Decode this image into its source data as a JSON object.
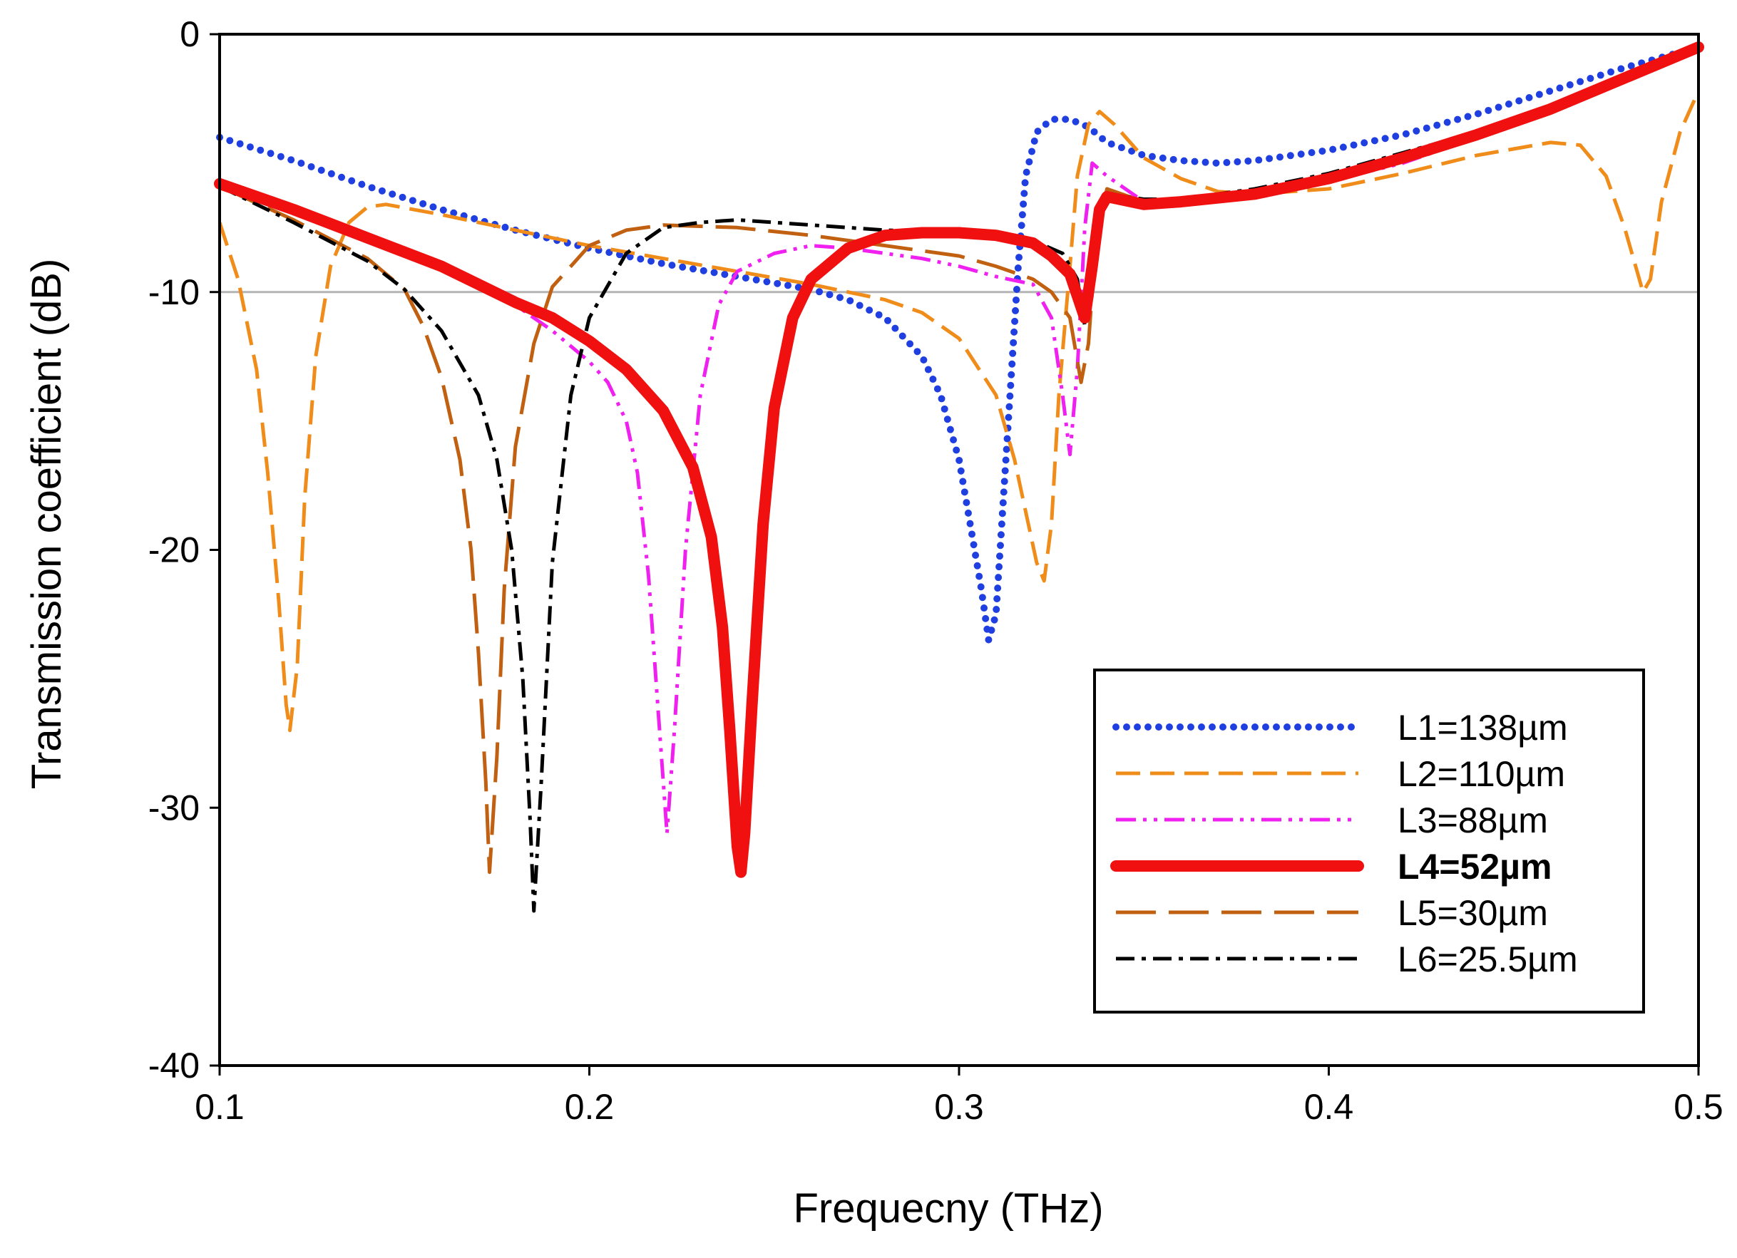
{
  "chart_data": {
    "type": "line",
    "xlabel": "Frequecny (THz)",
    "ylabel": "Transmission coefficient  (dB)",
    "xlim": [
      0.1,
      0.5
    ],
    "ylim": [
      -40,
      0
    ],
    "x_ticks": [
      "0.1",
      "0.2",
      "0.3",
      "0.4",
      "0.5"
    ],
    "y_ticks": [
      "0",
      "-10",
      "-20",
      "-30",
      "-40"
    ],
    "reference_line_y": -10,
    "legend_position": "bottom-right",
    "series": [
      {
        "name": "L1=138µm",
        "color": "#1f3fe0",
        "dash": "dotted",
        "bold": false,
        "points": [
          [
            0.1,
            -4.0
          ],
          [
            0.12,
            -4.9
          ],
          [
            0.14,
            -5.9
          ],
          [
            0.16,
            -6.8
          ],
          [
            0.18,
            -7.6
          ],
          [
            0.2,
            -8.3
          ],
          [
            0.22,
            -8.9
          ],
          [
            0.24,
            -9.4
          ],
          [
            0.26,
            -9.9
          ],
          [
            0.27,
            -10.3
          ],
          [
            0.28,
            -11.0
          ],
          [
            0.29,
            -12.5
          ],
          [
            0.295,
            -14.0
          ],
          [
            0.3,
            -16.5
          ],
          [
            0.303,
            -19.0
          ],
          [
            0.306,
            -21.5
          ],
          [
            0.308,
            -23.5
          ],
          [
            0.31,
            -22.5
          ],
          [
            0.312,
            -18.0
          ],
          [
            0.314,
            -13.5
          ],
          [
            0.316,
            -9.0
          ],
          [
            0.318,
            -5.5
          ],
          [
            0.321,
            -3.8
          ],
          [
            0.325,
            -3.3
          ],
          [
            0.33,
            -3.3
          ],
          [
            0.335,
            -3.6
          ],
          [
            0.34,
            -4.2
          ],
          [
            0.35,
            -4.7
          ],
          [
            0.36,
            -4.9
          ],
          [
            0.37,
            -5.0
          ],
          [
            0.38,
            -4.9
          ],
          [
            0.4,
            -4.5
          ],
          [
            0.42,
            -3.9
          ],
          [
            0.44,
            -3.1
          ],
          [
            0.46,
            -2.2
          ],
          [
            0.48,
            -1.3
          ],
          [
            0.5,
            -0.5
          ]
        ]
      },
      {
        "name": "L2=110µm",
        "color": "#f08c1a",
        "dash": "dashed",
        "bold": false,
        "points": [
          [
            0.1,
            -7.3
          ],
          [
            0.105,
            -9.5
          ],
          [
            0.11,
            -13.0
          ],
          [
            0.113,
            -17.0
          ],
          [
            0.116,
            -22.0
          ],
          [
            0.118,
            -26.0
          ],
          [
            0.119,
            -27.0
          ],
          [
            0.121,
            -24.5
          ],
          [
            0.123,
            -18.0
          ],
          [
            0.126,
            -12.5
          ],
          [
            0.13,
            -9.0
          ],
          [
            0.135,
            -7.3
          ],
          [
            0.14,
            -6.7
          ],
          [
            0.145,
            -6.6
          ],
          [
            0.16,
            -7.0
          ],
          [
            0.18,
            -7.6
          ],
          [
            0.2,
            -8.2
          ],
          [
            0.22,
            -8.7
          ],
          [
            0.24,
            -9.2
          ],
          [
            0.26,
            -9.7
          ],
          [
            0.28,
            -10.3
          ],
          [
            0.29,
            -10.8
          ],
          [
            0.3,
            -11.8
          ],
          [
            0.31,
            -14.0
          ],
          [
            0.315,
            -16.5
          ],
          [
            0.318,
            -18.5
          ],
          [
            0.321,
            -20.5
          ],
          [
            0.323,
            -21.2
          ],
          [
            0.325,
            -19.0
          ],
          [
            0.327,
            -14.0
          ],
          [
            0.33,
            -9.0
          ],
          [
            0.332,
            -5.5
          ],
          [
            0.335,
            -3.5
          ],
          [
            0.338,
            -3.0
          ],
          [
            0.342,
            -3.5
          ],
          [
            0.35,
            -4.8
          ],
          [
            0.36,
            -5.6
          ],
          [
            0.37,
            -6.1
          ],
          [
            0.38,
            -6.2
          ],
          [
            0.4,
            -6.0
          ],
          [
            0.42,
            -5.4
          ],
          [
            0.44,
            -4.7
          ],
          [
            0.46,
            -4.2
          ],
          [
            0.468,
            -4.3
          ],
          [
            0.475,
            -5.5
          ],
          [
            0.48,
            -7.5
          ],
          [
            0.485,
            -10.0
          ],
          [
            0.487,
            -9.5
          ],
          [
            0.49,
            -6.5
          ],
          [
            0.495,
            -3.8
          ],
          [
            0.5,
            -2.2
          ]
        ]
      },
      {
        "name": "L3=88µm",
        "color": "#f020f0",
        "dash": "dash-dot-dot",
        "bold": false,
        "points": [
          [
            0.1,
            -5.8
          ],
          [
            0.12,
            -6.8
          ],
          [
            0.14,
            -7.9
          ],
          [
            0.16,
            -9.0
          ],
          [
            0.18,
            -10.5
          ],
          [
            0.19,
            -11.5
          ],
          [
            0.2,
            -12.7
          ],
          [
            0.205,
            -13.5
          ],
          [
            0.21,
            -15.0
          ],
          [
            0.213,
            -17.0
          ],
          [
            0.216,
            -21.0
          ],
          [
            0.219,
            -27.0
          ],
          [
            0.221,
            -31.0
          ],
          [
            0.223,
            -27.0
          ],
          [
            0.226,
            -20.0
          ],
          [
            0.23,
            -14.0
          ],
          [
            0.235,
            -10.5
          ],
          [
            0.24,
            -9.2
          ],
          [
            0.25,
            -8.5
          ],
          [
            0.26,
            -8.2
          ],
          [
            0.27,
            -8.3
          ],
          [
            0.28,
            -8.5
          ],
          [
            0.29,
            -8.7
          ],
          [
            0.3,
            -9.0
          ],
          [
            0.31,
            -9.4
          ],
          [
            0.32,
            -9.7
          ],
          [
            0.325,
            -11.0
          ],
          [
            0.328,
            -14.0
          ],
          [
            0.33,
            -16.3
          ],
          [
            0.332,
            -13.0
          ],
          [
            0.334,
            -7.5
          ],
          [
            0.336,
            -5.0
          ],
          [
            0.34,
            -5.5
          ],
          [
            0.35,
            -6.5
          ],
          [
            0.36,
            -6.6
          ],
          [
            0.38,
            -6.3
          ],
          [
            0.4,
            -5.7
          ],
          [
            0.42,
            -5.0
          ],
          [
            0.44,
            -4.0
          ],
          [
            0.46,
            -3.0
          ],
          [
            0.48,
            -1.8
          ],
          [
            0.5,
            -0.6
          ]
        ]
      },
      {
        "name": "L4=52µm",
        "color": "#f01010",
        "dash": "solid",
        "bold": true,
        "points": [
          [
            0.1,
            -5.8
          ],
          [
            0.12,
            -6.8
          ],
          [
            0.14,
            -7.9
          ],
          [
            0.16,
            -9.0
          ],
          [
            0.18,
            -10.4
          ],
          [
            0.19,
            -11.0
          ],
          [
            0.2,
            -11.9
          ],
          [
            0.21,
            -13.0
          ],
          [
            0.22,
            -14.6
          ],
          [
            0.228,
            -16.8
          ],
          [
            0.233,
            -19.5
          ],
          [
            0.236,
            -23.0
          ],
          [
            0.238,
            -27.0
          ],
          [
            0.24,
            -31.5
          ],
          [
            0.241,
            -32.5
          ],
          [
            0.242,
            -31.0
          ],
          [
            0.244,
            -26.0
          ],
          [
            0.247,
            -19.0
          ],
          [
            0.25,
            -14.5
          ],
          [
            0.255,
            -11.0
          ],
          [
            0.26,
            -9.5
          ],
          [
            0.27,
            -8.3
          ],
          [
            0.28,
            -7.8
          ],
          [
            0.29,
            -7.7
          ],
          [
            0.3,
            -7.7
          ],
          [
            0.31,
            -7.8
          ],
          [
            0.32,
            -8.1
          ],
          [
            0.325,
            -8.6
          ],
          [
            0.33,
            -9.3
          ],
          [
            0.334,
            -11.0
          ],
          [
            0.336,
            -9.0
          ],
          [
            0.338,
            -6.8
          ],
          [
            0.34,
            -6.3
          ],
          [
            0.35,
            -6.6
          ],
          [
            0.36,
            -6.5
          ],
          [
            0.38,
            -6.2
          ],
          [
            0.4,
            -5.6
          ],
          [
            0.42,
            -4.8
          ],
          [
            0.44,
            -3.9
          ],
          [
            0.46,
            -2.9
          ],
          [
            0.48,
            -1.7
          ],
          [
            0.5,
            -0.5
          ]
        ]
      },
      {
        "name": "L5=30µm",
        "color": "#c06010",
        "dash": "long-dash",
        "bold": false,
        "points": [
          [
            0.1,
            -5.9
          ],
          [
            0.12,
            -7.2
          ],
          [
            0.14,
            -8.7
          ],
          [
            0.15,
            -9.9
          ],
          [
            0.155,
            -11.3
          ],
          [
            0.16,
            -13.3
          ],
          [
            0.165,
            -16.5
          ],
          [
            0.168,
            -20.0
          ],
          [
            0.17,
            -24.0
          ],
          [
            0.172,
            -29.0
          ],
          [
            0.173,
            -32.5
          ],
          [
            0.175,
            -28.0
          ],
          [
            0.177,
            -21.5
          ],
          [
            0.18,
            -16.0
          ],
          [
            0.185,
            -12.0
          ],
          [
            0.19,
            -9.8
          ],
          [
            0.2,
            -8.2
          ],
          [
            0.21,
            -7.6
          ],
          [
            0.22,
            -7.4
          ],
          [
            0.24,
            -7.5
          ],
          [
            0.26,
            -7.8
          ],
          [
            0.28,
            -8.2
          ],
          [
            0.3,
            -8.6
          ],
          [
            0.31,
            -9.0
          ],
          [
            0.32,
            -9.5
          ],
          [
            0.325,
            -10.0
          ],
          [
            0.33,
            -11.0
          ],
          [
            0.333,
            -13.5
          ],
          [
            0.335,
            -12.0
          ],
          [
            0.337,
            -8.0
          ],
          [
            0.34,
            -6.0
          ],
          [
            0.35,
            -6.5
          ],
          [
            0.36,
            -6.5
          ],
          [
            0.38,
            -6.2
          ],
          [
            0.4,
            -5.6
          ],
          [
            0.42,
            -4.8
          ],
          [
            0.44,
            -3.9
          ],
          [
            0.46,
            -2.9
          ],
          [
            0.48,
            -1.7
          ],
          [
            0.5,
            -0.5
          ]
        ]
      },
      {
        "name": "L6=25.5µm",
        "color": "#000000",
        "dash": "dash-dot",
        "bold": false,
        "points": [
          [
            0.1,
            -5.9
          ],
          [
            0.12,
            -7.3
          ],
          [
            0.14,
            -8.8
          ],
          [
            0.15,
            -9.9
          ],
          [
            0.16,
            -11.5
          ],
          [
            0.17,
            -14.0
          ],
          [
            0.175,
            -16.5
          ],
          [
            0.179,
            -20.0
          ],
          [
            0.182,
            -25.0
          ],
          [
            0.184,
            -30.5
          ],
          [
            0.185,
            -34.0
          ],
          [
            0.187,
            -29.0
          ],
          [
            0.19,
            -20.5
          ],
          [
            0.195,
            -14.0
          ],
          [
            0.2,
            -11.0
          ],
          [
            0.21,
            -8.5
          ],
          [
            0.22,
            -7.5
          ],
          [
            0.23,
            -7.3
          ],
          [
            0.24,
            -7.2
          ],
          [
            0.26,
            -7.4
          ],
          [
            0.28,
            -7.6
          ],
          [
            0.3,
            -7.7
          ],
          [
            0.31,
            -7.8
          ],
          [
            0.32,
            -8.0
          ],
          [
            0.328,
            -8.5
          ],
          [
            0.332,
            -9.5
          ],
          [
            0.334,
            -11.3
          ],
          [
            0.336,
            -10.0
          ],
          [
            0.338,
            -7.0
          ],
          [
            0.34,
            -6.2
          ],
          [
            0.35,
            -6.4
          ],
          [
            0.36,
            -6.4
          ],
          [
            0.38,
            -6.0
          ],
          [
            0.4,
            -5.4
          ],
          [
            0.42,
            -4.6
          ],
          [
            0.44,
            -3.8
          ],
          [
            0.46,
            -2.8
          ],
          [
            0.48,
            -1.7
          ],
          [
            0.5,
            -0.5
          ]
        ]
      }
    ]
  }
}
